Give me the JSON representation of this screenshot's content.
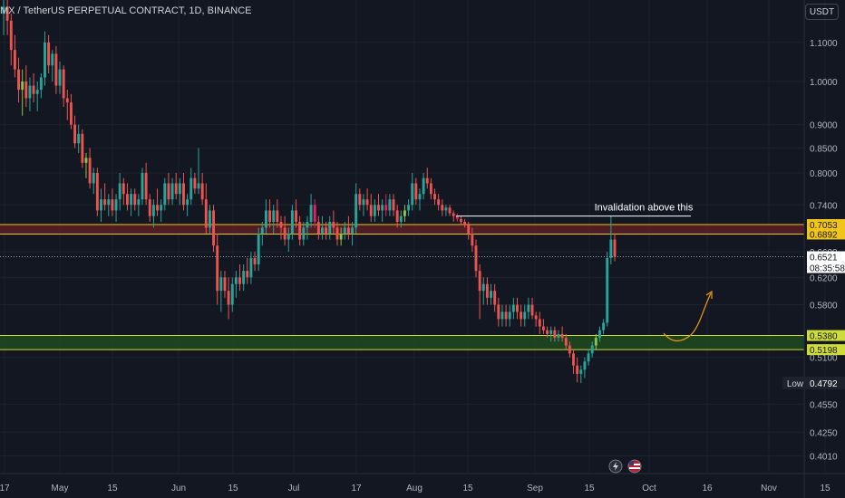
{
  "header": {
    "symbol_text": "MX / TetherUS PERPETUAL CONTRACT, 1D, BINANCE",
    "currency_button": "USDT"
  },
  "colors": {
    "background": "#131722",
    "grid": "#1e222d",
    "up_candle": "#26a69a",
    "down_candle": "#ef5350",
    "up_candle_highlight": "#8bc34a",
    "down_candle_highlight": "#e91e63",
    "resistance_zone": "#5a1f24",
    "resistance_border": "#f0c419",
    "support_zone": "#1f4a1f",
    "support_border": "#cddc39",
    "projection_arrow": "#f39c12",
    "annotation_line": "#ffffff"
  },
  "chart_data": {
    "type": "candlestick",
    "scale": "log",
    "y_ticks": [
      "1.1000",
      "1.0000",
      "0.9000",
      "0.8500",
      "0.8000",
      "0.7400",
      "0.6600",
      "0.6200",
      "0.5800",
      "0.5100",
      "0.4550",
      "0.4250",
      "0.4010"
    ],
    "x_ticks": [
      "17",
      "May",
      "15",
      "Jun",
      "15",
      "Jul",
      "17",
      "Aug",
      "15",
      "Sep",
      "15",
      "Oct",
      "16",
      "Nov",
      "15"
    ],
    "ylim": [
      0.385,
      1.22
    ],
    "price_labels": [
      {
        "label": "0.7053",
        "kind": "resistance"
      },
      {
        "label": "0.6892",
        "kind": "resistance"
      },
      {
        "label": "0.6521",
        "kind": "last"
      },
      {
        "label": "08:35:58",
        "kind": "countdown"
      },
      {
        "label": "0.5380",
        "kind": "support"
      },
      {
        "label": "0.5198",
        "kind": "support"
      }
    ],
    "low_marker": {
      "label": "Low",
      "value": "0.4792"
    },
    "zones": [
      {
        "name": "resistance",
        "low": 0.6892,
        "high": 0.7053
      },
      {
        "name": "support",
        "low": 0.5198,
        "high": 0.538
      }
    ],
    "annotation": {
      "text": "Invalidation above this",
      "level": 0.72
    },
    "last_price": 0.6521,
    "grid": true,
    "candles": [
      [
        1.18,
        1.24,
        1.12,
        1.2
      ],
      [
        1.2,
        1.22,
        1.12,
        1.16
      ],
      [
        1.16,
        1.18,
        1.04,
        1.08
      ],
      [
        1.08,
        1.12,
        1.01,
        1.03
      ],
      [
        1.03,
        1.06,
        0.95,
        0.98
      ],
      [
        0.98,
        1.03,
        0.92,
        1.0
      ],
      [
        1.0,
        1.04,
        0.94,
        0.96
      ],
      [
        0.96,
        1.01,
        0.93,
        0.99
      ],
      [
        0.99,
        1.02,
        0.95,
        0.97
      ],
      [
        0.97,
        1.0,
        0.93,
        0.98
      ],
      [
        0.98,
        1.02,
        0.96,
        1.01
      ],
      [
        1.01,
        1.13,
        0.99,
        1.1
      ],
      [
        1.1,
        1.12,
        1.02,
        1.04
      ],
      [
        1.04,
        1.08,
        1.0,
        1.07
      ],
      [
        1.07,
        1.09,
        0.97,
        0.99
      ],
      [
        0.99,
        1.05,
        0.97,
        1.03
      ],
      [
        1.03,
        1.04,
        0.94,
        0.96
      ],
      [
        0.96,
        0.98,
        0.91,
        0.95
      ],
      [
        0.95,
        0.97,
        0.89,
        0.9
      ],
      [
        0.9,
        0.92,
        0.85,
        0.86
      ],
      [
        0.86,
        0.9,
        0.84,
        0.88
      ],
      [
        0.88,
        0.89,
        0.81,
        0.82
      ],
      [
        0.82,
        0.84,
        0.79,
        0.83
      ],
      [
        0.83,
        0.85,
        0.77,
        0.78
      ],
      [
        0.78,
        0.81,
        0.76,
        0.8
      ],
      [
        0.8,
        0.81,
        0.72,
        0.73
      ],
      [
        0.73,
        0.77,
        0.71,
        0.75
      ],
      [
        0.75,
        0.78,
        0.73,
        0.74
      ],
      [
        0.74,
        0.76,
        0.72,
        0.75
      ],
      [
        0.75,
        0.77,
        0.72,
        0.73
      ],
      [
        0.73,
        0.76,
        0.71,
        0.75
      ],
      [
        0.75,
        0.8,
        0.73,
        0.78
      ],
      [
        0.78,
        0.79,
        0.74,
        0.76
      ],
      [
        0.76,
        0.78,
        0.73,
        0.74
      ],
      [
        0.74,
        0.77,
        0.72,
        0.76
      ],
      [
        0.76,
        0.77,
        0.73,
        0.74
      ],
      [
        0.74,
        0.76,
        0.72,
        0.75
      ],
      [
        0.75,
        0.81,
        0.74,
        0.8
      ],
      [
        0.8,
        0.82,
        0.74,
        0.75
      ],
      [
        0.75,
        0.76,
        0.71,
        0.72
      ],
      [
        0.72,
        0.75,
        0.7,
        0.74
      ],
      [
        0.74,
        0.77,
        0.72,
        0.73
      ],
      [
        0.73,
        0.75,
        0.71,
        0.74
      ],
      [
        0.74,
        0.79,
        0.73,
        0.78
      ],
      [
        0.78,
        0.8,
        0.74,
        0.75
      ],
      [
        0.75,
        0.79,
        0.74,
        0.78
      ],
      [
        0.78,
        0.8,
        0.75,
        0.76
      ],
      [
        0.76,
        0.79,
        0.74,
        0.78
      ],
      [
        0.78,
        0.8,
        0.73,
        0.74
      ],
      [
        0.74,
        0.76,
        0.72,
        0.75
      ],
      [
        0.75,
        0.81,
        0.74,
        0.79
      ],
      [
        0.79,
        0.8,
        0.76,
        0.77
      ],
      [
        0.77,
        0.85,
        0.76,
        0.78
      ],
      [
        0.78,
        0.8,
        0.74,
        0.75
      ],
      [
        0.75,
        0.78,
        0.69,
        0.7
      ],
      [
        0.7,
        0.74,
        0.69,
        0.73
      ],
      [
        0.73,
        0.74,
        0.66,
        0.67
      ],
      [
        0.67,
        0.69,
        0.58,
        0.6
      ],
      [
        0.6,
        0.63,
        0.57,
        0.62
      ],
      [
        0.62,
        0.63,
        0.59,
        0.6
      ],
      [
        0.6,
        0.62,
        0.56,
        0.58
      ],
      [
        0.58,
        0.62,
        0.57,
        0.61
      ],
      [
        0.61,
        0.63,
        0.59,
        0.62
      ],
      [
        0.62,
        0.64,
        0.6,
        0.61
      ],
      [
        0.61,
        0.64,
        0.6,
        0.63
      ],
      [
        0.63,
        0.65,
        0.61,
        0.62
      ],
      [
        0.62,
        0.66,
        0.61,
        0.65
      ],
      [
        0.65,
        0.66,
        0.63,
        0.64
      ],
      [
        0.64,
        0.7,
        0.63,
        0.69
      ],
      [
        0.69,
        0.71,
        0.67,
        0.7
      ],
      [
        0.7,
        0.75,
        0.69,
        0.73
      ],
      [
        0.73,
        0.75,
        0.7,
        0.71
      ],
      [
        0.71,
        0.74,
        0.69,
        0.73
      ],
      [
        0.73,
        0.75,
        0.7,
        0.71
      ],
      [
        0.71,
        0.72,
        0.68,
        0.7
      ],
      [
        0.7,
        0.72,
        0.67,
        0.68
      ],
      [
        0.68,
        0.7,
        0.66,
        0.69
      ],
      [
        0.69,
        0.74,
        0.68,
        0.73
      ],
      [
        0.73,
        0.75,
        0.7,
        0.71
      ],
      [
        0.71,
        0.72,
        0.67,
        0.68
      ],
      [
        0.68,
        0.71,
        0.67,
        0.7
      ],
      [
        0.7,
        0.72,
        0.68,
        0.71
      ],
      [
        0.71,
        0.76,
        0.7,
        0.74
      ],
      [
        0.74,
        0.75,
        0.7,
        0.71
      ],
      [
        0.71,
        0.72,
        0.68,
        0.69
      ],
      [
        0.69,
        0.72,
        0.68,
        0.7
      ],
      [
        0.7,
        0.71,
        0.68,
        0.69
      ],
      [
        0.69,
        0.72,
        0.68,
        0.71
      ],
      [
        0.71,
        0.73,
        0.69,
        0.7
      ],
      [
        0.7,
        0.71,
        0.67,
        0.68
      ],
      [
        0.68,
        0.7,
        0.67,
        0.69
      ],
      [
        0.69,
        0.71,
        0.68,
        0.7
      ],
      [
        0.7,
        0.72,
        0.68,
        0.69
      ],
      [
        0.69,
        0.71,
        0.67,
        0.7
      ],
      [
        0.7,
        0.78,
        0.69,
        0.76
      ],
      [
        0.76,
        0.77,
        0.73,
        0.74
      ],
      [
        0.74,
        0.76,
        0.72,
        0.75
      ],
      [
        0.75,
        0.77,
        0.73,
        0.74
      ],
      [
        0.74,
        0.76,
        0.71,
        0.72
      ],
      [
        0.72,
        0.75,
        0.71,
        0.74
      ],
      [
        0.74,
        0.76,
        0.72,
        0.73
      ],
      [
        0.73,
        0.75,
        0.71,
        0.74
      ],
      [
        0.74,
        0.76,
        0.72,
        0.73
      ],
      [
        0.73,
        0.76,
        0.72,
        0.75
      ],
      [
        0.75,
        0.76,
        0.72,
        0.73
      ],
      [
        0.73,
        0.74,
        0.7,
        0.71
      ],
      [
        0.71,
        0.73,
        0.7,
        0.72
      ],
      [
        0.72,
        0.74,
        0.71,
        0.73
      ],
      [
        0.73,
        0.75,
        0.72,
        0.74
      ],
      [
        0.74,
        0.8,
        0.73,
        0.78
      ],
      [
        0.78,
        0.79,
        0.74,
        0.75
      ],
      [
        0.75,
        0.77,
        0.73,
        0.76
      ],
      [
        0.76,
        0.8,
        0.75,
        0.79
      ],
      [
        0.79,
        0.81,
        0.77,
        0.78
      ],
      [
        0.78,
        0.79,
        0.75,
        0.76
      ],
      [
        0.76,
        0.77,
        0.74,
        0.75
      ],
      [
        0.75,
        0.76,
        0.73,
        0.74
      ],
      [
        0.74,
        0.75,
        0.72,
        0.73
      ],
      [
        0.73,
        0.74,
        0.72,
        0.735
      ],
      [
        0.735,
        0.74,
        0.72,
        0.725
      ],
      [
        0.725,
        0.73,
        0.71,
        0.72
      ],
      [
        0.72,
        0.725,
        0.71,
        0.715
      ],
      [
        0.715,
        0.72,
        0.705,
        0.71
      ],
      [
        0.71,
        0.715,
        0.7,
        0.705
      ],
      [
        0.705,
        0.71,
        0.68,
        0.69
      ],
      [
        0.69,
        0.7,
        0.66,
        0.67
      ],
      [
        0.67,
        0.68,
        0.62,
        0.63
      ],
      [
        0.63,
        0.64,
        0.56,
        0.6
      ],
      [
        0.6,
        0.62,
        0.58,
        0.61
      ],
      [
        0.61,
        0.62,
        0.58,
        0.59
      ],
      [
        0.59,
        0.61,
        0.58,
        0.6
      ],
      [
        0.6,
        0.61,
        0.57,
        0.58
      ],
      [
        0.58,
        0.59,
        0.55,
        0.56
      ],
      [
        0.56,
        0.58,
        0.55,
        0.57
      ],
      [
        0.57,
        0.58,
        0.55,
        0.56
      ],
      [
        0.56,
        0.58,
        0.55,
        0.57
      ],
      [
        0.57,
        0.59,
        0.56,
        0.58
      ],
      [
        0.58,
        0.59,
        0.56,
        0.57
      ],
      [
        0.57,
        0.58,
        0.55,
        0.56
      ],
      [
        0.56,
        0.58,
        0.55,
        0.57
      ],
      [
        0.57,
        0.59,
        0.56,
        0.58
      ],
      [
        0.58,
        0.59,
        0.56,
        0.565
      ],
      [
        0.565,
        0.57,
        0.55,
        0.56
      ],
      [
        0.56,
        0.57,
        0.54,
        0.55
      ],
      [
        0.55,
        0.56,
        0.54,
        0.545
      ],
      [
        0.545,
        0.55,
        0.535,
        0.54
      ],
      [
        0.54,
        0.55,
        0.53,
        0.545
      ],
      [
        0.545,
        0.55,
        0.53,
        0.535
      ],
      [
        0.535,
        0.545,
        0.53,
        0.54
      ],
      [
        0.54,
        0.55,
        0.53,
        0.535
      ],
      [
        0.535,
        0.54,
        0.52,
        0.525
      ],
      [
        0.525,
        0.53,
        0.51,
        0.515
      ],
      [
        0.515,
        0.52,
        0.49,
        0.5
      ],
      [
        0.5,
        0.51,
        0.48,
        0.49
      ],
      [
        0.49,
        0.5,
        0.479,
        0.495
      ],
      [
        0.495,
        0.51,
        0.485,
        0.505
      ],
      [
        0.505,
        0.52,
        0.5,
        0.515
      ],
      [
        0.515,
        0.53,
        0.51,
        0.525
      ],
      [
        0.525,
        0.54,
        0.52,
        0.535
      ],
      [
        0.535,
        0.55,
        0.53,
        0.545
      ],
      [
        0.545,
        0.56,
        0.54,
        0.555
      ],
      [
        0.555,
        0.66,
        0.55,
        0.65
      ],
      [
        0.65,
        0.72,
        0.64,
        0.68
      ],
      [
        0.68,
        0.69,
        0.645,
        0.6521
      ]
    ]
  }
}
